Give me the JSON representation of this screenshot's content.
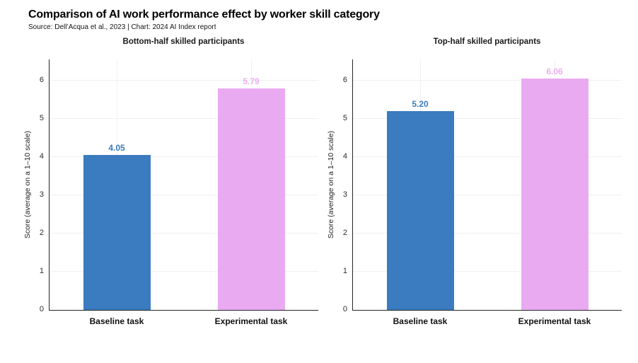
{
  "header": {
    "title": "Comparison of AI work performance effect by worker skill category",
    "source": "Source: Dell’Acqua et al., 2023 | Chart: 2024 AI Index report"
  },
  "chart_data": [
    {
      "type": "bar",
      "title": "Bottom-half skilled participants",
      "categories": [
        "Baseline task",
        "Experimental task"
      ],
      "values": [
        4.05,
        5.79
      ],
      "value_labels": [
        "4.05",
        "5.79"
      ],
      "xlabel": "",
      "ylabel": "Score (average on a 1–10 scale)",
      "ylim": [
        0,
        6.55
      ],
      "yticks": [
        0,
        1,
        2,
        3,
        4,
        5,
        6
      ],
      "grid": "light horizontal lines at integer ticks plus faint vertical line at each category center",
      "legend_position": "none",
      "bar_colors": [
        "#3b7bbf",
        "#e9aaf2"
      ],
      "value_label_colors": [
        "#3b7bbf",
        "#edaef2"
      ]
    },
    {
      "type": "bar",
      "title": "Top-half skilled participants",
      "categories": [
        "Baseline task",
        "Experimental task"
      ],
      "values": [
        5.2,
        6.06
      ],
      "value_labels": [
        "5.20",
        "6.06"
      ],
      "xlabel": "",
      "ylabel": "Score (average on a 1–10 scale)",
      "ylim": [
        0,
        6.55
      ],
      "yticks": [
        0,
        1,
        2,
        3,
        4,
        5,
        6
      ],
      "grid": "light horizontal lines at integer ticks plus faint vertical line at each category center",
      "legend_position": "none",
      "bar_colors": [
        "#3b7bbf",
        "#e9aaf2"
      ],
      "value_label_colors": [
        "#3b7bbf",
        "#edaef2"
      ]
    }
  ]
}
